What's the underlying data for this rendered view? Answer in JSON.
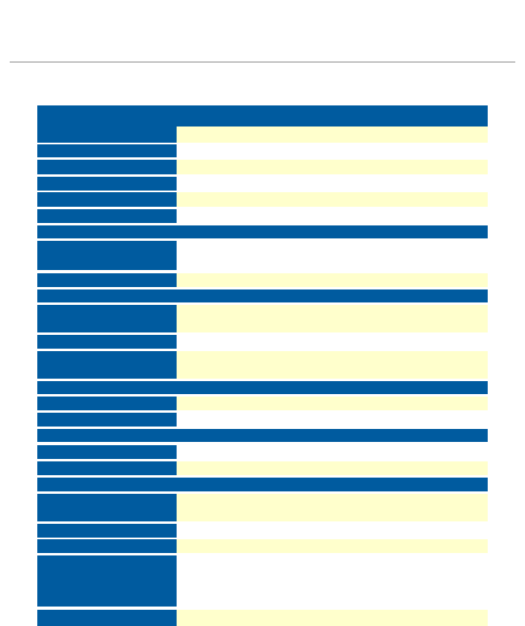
{
  "header": {
    "title": ""
  },
  "table": {
    "header_label": "",
    "header_value": "",
    "rows": [
      {
        "label": "",
        "value": ""
      },
      {
        "label": "",
        "value": ""
      },
      {
        "label": "",
        "value": ""
      },
      {
        "label": "",
        "value": ""
      },
      {
        "label": "",
        "value": ""
      },
      {
        "label": "",
        "value": ""
      }
    ],
    "sections": [
      {
        "title": "",
        "rows": [
          {
            "label": "",
            "value": ""
          },
          {
            "label": "",
            "value": ""
          }
        ]
      },
      {
        "title": "",
        "rows": [
          {
            "label": "",
            "value": ""
          },
          {
            "label": "",
            "value": ""
          },
          {
            "label": "",
            "value": ""
          }
        ]
      },
      {
        "title": "",
        "rows": [
          {
            "label": "",
            "value": ""
          },
          {
            "label": "",
            "value": ""
          }
        ]
      },
      {
        "title": "",
        "rows": [
          {
            "label": "",
            "value": ""
          },
          {
            "label": "",
            "value": ""
          }
        ]
      },
      {
        "title": "",
        "rows": [
          {
            "label": "",
            "value": ""
          },
          {
            "label": "",
            "value": ""
          },
          {
            "label": "",
            "value": ""
          },
          {
            "label": "",
            "value": ""
          },
          {
            "label": "",
            "value": ""
          }
        ]
      }
    ]
  },
  "colors": {
    "header_blue": "#005b9f",
    "value_yellow": "#ffffcc",
    "divider": "#8a8a8a"
  }
}
